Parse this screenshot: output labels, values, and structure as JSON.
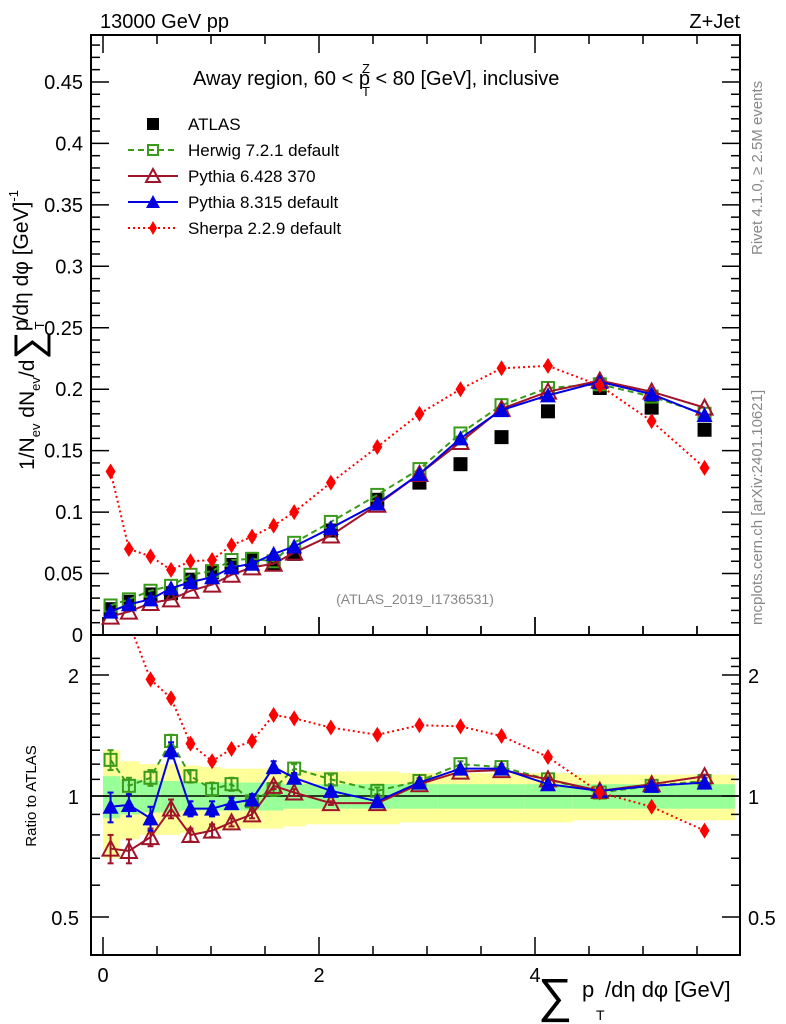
{
  "chart_data": [
    {
      "type": "scatter",
      "panel": "main",
      "header_left": "13000 GeV pp",
      "header_right": "Z+Jet",
      "title": "Away region, 60 < p_T^Z < 80 [GeV], inclusive",
      "title_parts": {
        "pre": "Away region, 60 < p",
        "sup": "Z",
        "sub": "T",
        "post": " < 80 [GeV], inclusive"
      },
      "ylabel": "1/N_ev dN_ev/d∑p_T/dη dφ [GeV]^-1",
      "ylabel_parts": {
        "a": "1/N",
        "a_sub": "ev",
        "b": " dN",
        "b_sub": "ev",
        "c": "/d",
        "sigma": "∑",
        "d": "p",
        "d_sub": "T",
        "e": "/dη dφ  [GeV]",
        "e_sup": "-1"
      },
      "xlim": [
        -0.05,
        5.95
      ],
      "ylim": [
        0,
        0.49
      ],
      "yticks": [
        0,
        0.05,
        0.1,
        0.15,
        0.2,
        0.25,
        0.3,
        0.35,
        0.4,
        0.45
      ],
      "ytick_labels": [
        "0",
        "0.05",
        "0.1",
        "0.15",
        "0.2",
        "0.25",
        "0.3",
        "0.35",
        "0.4",
        "0.45"
      ],
      "watermark": "(ATLAS_2019_I1736531)",
      "legend_position": "top-left",
      "x": [
        0.07,
        0.24,
        0.44,
        0.63,
        0.81,
        1.01,
        1.19,
        1.38,
        1.58,
        1.77,
        2.11,
        2.54,
        2.93,
        3.31,
        3.69,
        4.12,
        4.6,
        5.08,
        5.57
      ],
      "series": [
        {
          "name": "ATLAS",
          "color": "#000000",
          "marker": "square-filled",
          "line": "none",
          "values": [
            0.021,
            0.027,
            0.033,
            0.034,
            0.045,
            0.051,
            0.057,
            0.061,
            0.058,
            0.066,
            0.085,
            0.11,
            0.124,
            0.139,
            0.161,
            0.182,
            0.201,
            0.185,
            0.167
          ]
        },
        {
          "name": "Herwig 7.2.1 default",
          "color": "#3a9a1a",
          "marker": "square-open",
          "line": "dashed",
          "values": [
            0.024,
            0.029,
            0.036,
            0.04,
            0.049,
            0.052,
            0.061,
            0.062,
            0.06,
            0.075,
            0.092,
            0.114,
            0.135,
            0.164,
            0.187,
            0.201,
            0.204,
            0.194,
            0.18
          ]
        },
        {
          "name": "Pythia 6.428 370",
          "color": "#a0142a",
          "marker": "triangle-open",
          "line": "solid",
          "values": [
            0.015,
            0.019,
            0.026,
            0.029,
            0.036,
            0.041,
            0.049,
            0.055,
            0.058,
            0.067,
            0.081,
            0.106,
            0.131,
            0.157,
            0.184,
            0.198,
            0.207,
            0.198,
            0.185
          ]
        },
        {
          "name": "Pythia 8.315 default",
          "color": "#0000e0",
          "marker": "triangle-filled",
          "line": "solid",
          "values": [
            0.019,
            0.025,
            0.029,
            0.038,
            0.043,
            0.047,
            0.055,
            0.058,
            0.066,
            0.072,
            0.087,
            0.107,
            0.131,
            0.16,
            0.183,
            0.195,
            0.206,
            0.196,
            0.179
          ]
        },
        {
          "name": "Sherpa 2.2.9 default",
          "color": "#ff0000",
          "marker": "diamond-filled",
          "line": "dotted",
          "values": [
            0.133,
            0.07,
            0.064,
            0.053,
            0.06,
            0.061,
            0.073,
            0.08,
            0.089,
            0.1,
            0.124,
            0.153,
            0.18,
            0.2,
            0.217,
            0.219,
            0.203,
            0.174,
            0.136
          ]
        }
      ]
    },
    {
      "type": "scatter",
      "panel": "ratio",
      "ylabel": "Ratio to ATLAS",
      "xlabel": "∑p_T/dη dφ [GeV]",
      "xlabel_parts": {
        "sigma": "∑",
        "p": "p",
        "sub": "T",
        "rest": "/dη dφ [GeV]"
      },
      "yscale": "log",
      "ylim": [
        0.37,
        2.3
      ],
      "yticks": [
        0.5,
        1,
        2
      ],
      "ytick_labels": [
        "0.5",
        "1",
        "2"
      ],
      "xticks": [
        0,
        2,
        4
      ],
      "xtick_labels": [
        "0",
        "2",
        "4"
      ],
      "bin_edges": [
        0,
        0.16,
        0.34,
        0.53,
        0.72,
        0.91,
        1.1,
        1.29,
        1.48,
        1.67,
        1.88,
        2.3,
        2.75,
        3.1,
        3.5,
        3.9,
        4.35,
        4.85,
        5.3,
        5.85
      ],
      "band_inner_halfwidth": [
        0.12,
        0.1,
        0.09,
        0.09,
        0.08,
        0.08,
        0.08,
        0.08,
        0.08,
        0.07,
        0.07,
        0.07,
        0.07,
        0.07,
        0.07,
        0.07,
        0.07,
        0.07,
        0.07
      ],
      "band_outer_halfwidth": [
        0.3,
        0.22,
        0.2,
        0.2,
        0.19,
        0.18,
        0.17,
        0.17,
        0.17,
        0.16,
        0.15,
        0.15,
        0.14,
        0.14,
        0.14,
        0.14,
        0.13,
        0.13,
        0.13
      ],
      "x": [
        0.07,
        0.24,
        0.44,
        0.63,
        0.81,
        1.01,
        1.19,
        1.38,
        1.58,
        1.77,
        2.11,
        2.54,
        2.93,
        3.31,
        3.69,
        4.12,
        4.6,
        5.08,
        5.57
      ],
      "series": [
        {
          "name": "Herwig 7.2.1 default",
          "color": "#3a9a1a",
          "marker": "square-open",
          "line": "dashed",
          "values": [
            1.23,
            1.06,
            1.11,
            1.37,
            1.12,
            1.04,
            1.07,
            0.97,
            1.04,
            1.17,
            1.1,
            1.03,
            1.09,
            1.2,
            1.18,
            1.1,
            1.02,
            1.06,
            1.09
          ],
          "errors": [
            0.07,
            0.05,
            0.05,
            0.05,
            0.04,
            0.04,
            0.04,
            0.04,
            0.04,
            0.03,
            0.03,
            0.02,
            0.02,
            0.02,
            0.02,
            0.02,
            0.02,
            0.02,
            0.02
          ]
        },
        {
          "name": "Pythia 6.428 370",
          "color": "#a0142a",
          "marker": "triangle-open",
          "line": "solid",
          "values": [
            0.74,
            0.73,
            0.79,
            0.93,
            0.8,
            0.82,
            0.86,
            0.9,
            1.06,
            1.02,
            0.96,
            0.96,
            1.07,
            1.15,
            1.16,
            1.1,
            1.03,
            1.07,
            1.12
          ],
          "errors": [
            0.06,
            0.05,
            0.04,
            0.05,
            0.03,
            0.03,
            0.02,
            0.02,
            0.02,
            0.02,
            0.01,
            0.01,
            0.01,
            0.01,
            0.01,
            0.01,
            0.01,
            0.01,
            0.01
          ]
        },
        {
          "name": "Pythia 8.315 default",
          "color": "#0000e0",
          "marker": "triangle-filled",
          "line": "solid",
          "values": [
            0.94,
            0.95,
            0.88,
            1.3,
            0.93,
            0.93,
            0.96,
            0.98,
            1.18,
            1.11,
            1.03,
            0.97,
            1.08,
            1.17,
            1.17,
            1.07,
            1.03,
            1.06,
            1.08
          ],
          "errors": [
            0.08,
            0.06,
            0.06,
            0.06,
            0.04,
            0.04,
            0.03,
            0.03,
            0.04,
            0.03,
            0.02,
            0.02,
            0.01,
            0.01,
            0.01,
            0.01,
            0.01,
            0.01,
            0.01
          ]
        },
        {
          "name": "Sherpa 2.2.9 default",
          "color": "#ff0000",
          "marker": "diamond-filled",
          "line": "dotted",
          "values": [
            6.5,
            2.7,
            1.95,
            1.75,
            1.35,
            1.22,
            1.31,
            1.37,
            1.59,
            1.56,
            1.48,
            1.42,
            1.5,
            1.49,
            1.41,
            1.25,
            1.02,
            0.94,
            0.82
          ],
          "errors": [
            0,
            0,
            0.03,
            0.03,
            0.03,
            0.02,
            0.02,
            0.02,
            0.02,
            0.02,
            0.01,
            0.01,
            0.01,
            0.01,
            0.01,
            0.01,
            0.01,
            0.01,
            0.01
          ]
        }
      ]
    }
  ],
  "side_labels": {
    "rivet": "Rivet 4.1.0, ≥ 2.5M events",
    "mcplots": "mcplots.cern.ch [arXiv:2401.10621]"
  },
  "colors": {
    "band_inner": "#99ff99",
    "band_outer": "#ffff99"
  }
}
